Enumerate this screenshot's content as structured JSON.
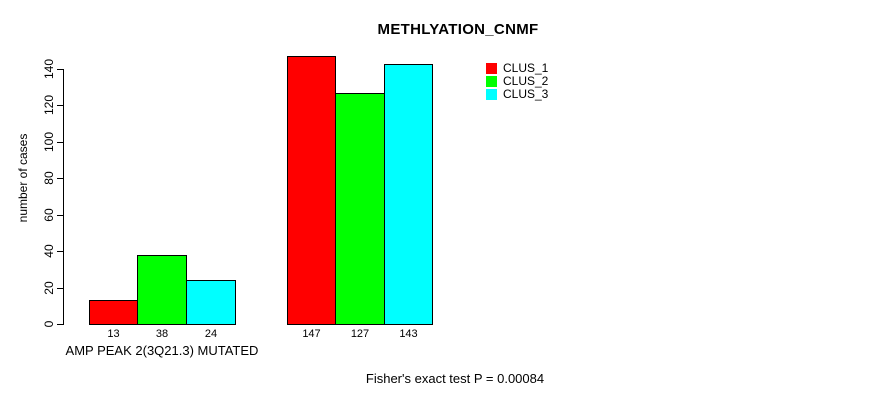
{
  "title": "METHLYATION_CNMF",
  "footnote": "Fisher's exact test P = 0.00084",
  "colors": {
    "clus_1": "#FF0000",
    "clus_2": "#00FF00",
    "clus_3": "#00FFFF",
    "bar_border": "#000000",
    "background": "#FFFFFF",
    "text": "#000000"
  },
  "chart_data": {
    "type": "bar",
    "title": "METHLYATION_CNMF",
    "xlabel": "",
    "ylabel": "number of cases",
    "ylim": [
      0,
      140
    ],
    "yticks": [
      0,
      20,
      40,
      60,
      80,
      100,
      120,
      140
    ],
    "grid": false,
    "legend_position": "top-right",
    "categories": [
      "AMP PEAK 2(3Q21.3) MUTATED",
      ""
    ],
    "series": [
      {
        "name": "CLUS_1",
        "color": "#FF0000",
        "values": [
          13,
          147
        ]
      },
      {
        "name": "CLUS_2",
        "color": "#00FF00",
        "values": [
          38,
          127
        ]
      },
      {
        "name": "CLUS_3",
        "color": "#00FFFF",
        "values": [
          24,
          143
        ]
      }
    ],
    "bar_value_labels": [
      [
        13,
        38,
        24
      ],
      [
        147,
        127,
        143
      ]
    ],
    "annotation": "Fisher's exact test P = 0.00084"
  }
}
